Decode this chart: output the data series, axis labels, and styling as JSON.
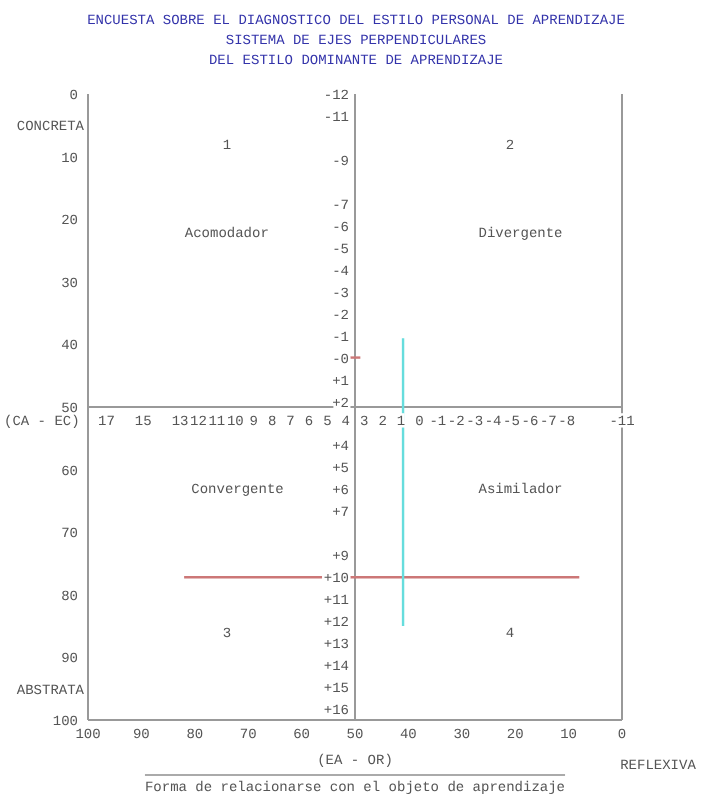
{
  "chart_data": {
    "type": "line",
    "title": "ENCUESTA SOBRE EL DIAGNOSTICO DEL ESTILO PERSONAL DE APRENDIZAJE",
    "subtitle": "SISTEMA DE EJES PERPENDICULARES\nDEL ESTILO DOMINANTE DE APRENDIZAJE",
    "xlabel": "(EA - OR)",
    "x2label": "(CA - EC)",
    "xlim": [
      100,
      0
    ],
    "xticks": [
      100,
      90,
      80,
      70,
      60,
      50,
      40,
      30,
      20,
      10,
      0
    ],
    "ylim": [
      100,
      0
    ],
    "yticks": [
      0,
      10,
      20,
      30,
      40,
      50,
      60,
      70,
      80,
      90,
      100
    ],
    "x2lim": [
      18,
      -11
    ],
    "x2ticks": [
      17,
      15,
      13,
      12,
      11,
      10,
      9,
      8,
      7,
      6,
      5,
      4,
      3,
      2,
      1,
      0,
      -1,
      -2,
      -3,
      -4,
      -5,
      -6,
      -7,
      -8,
      -11
    ],
    "y2lim": [
      16.5,
      -12
    ],
    "y2ticks": [
      -12,
      -11,
      -9,
      -7,
      -6,
      -5,
      -4,
      -3,
      -2,
      -1,
      {
        "value": 0,
        "label": "-0"
      },
      {
        "value": 1,
        "label": "+1"
      },
      {
        "value": 2,
        "label": "+2"
      },
      {
        "value": 4,
        "label": "+4"
      },
      {
        "value": 5,
        "label": "+5"
      },
      {
        "value": 6,
        "label": "+6"
      },
      {
        "value": 7,
        "label": "+7"
      },
      {
        "value": 9,
        "label": "+9"
      },
      {
        "value": 10,
        "label": "+10"
      },
      {
        "value": 11,
        "label": "+11"
      },
      {
        "value": 12,
        "label": "+12"
      },
      {
        "value": 13,
        "label": "+13"
      },
      {
        "value": 14,
        "label": "+14"
      },
      {
        "value": 15,
        "label": "+15"
      },
      {
        "value": 16,
        "label": "+16"
      }
    ],
    "series": [
      {
        "color": "#cc7777",
        "axis": "y2",
        "x": [
          82,
          8
        ],
        "values": [
          10,
          10
        ]
      },
      {
        "color": "#66dddd",
        "x": [
          41,
          41
        ],
        "values": [
          39,
          85
        ]
      },
      {
        "color": "#cc7777",
        "axis": "y2",
        "x": [
          53,
          49
        ],
        "values": [
          0,
          0
        ]
      }
    ],
    "grid": false,
    "marker": "none",
    "line_style": "solid",
    "annotations": [
      "1",
      "2",
      "Acomodador",
      "Divergente",
      "Convergente",
      "Asimilador",
      "3",
      "4",
      "CONCRETA",
      "ABSTRATA",
      "REFLEXIVA",
      "Forma de relacionarse con el objeto de aprendizaje"
    ]
  }
}
